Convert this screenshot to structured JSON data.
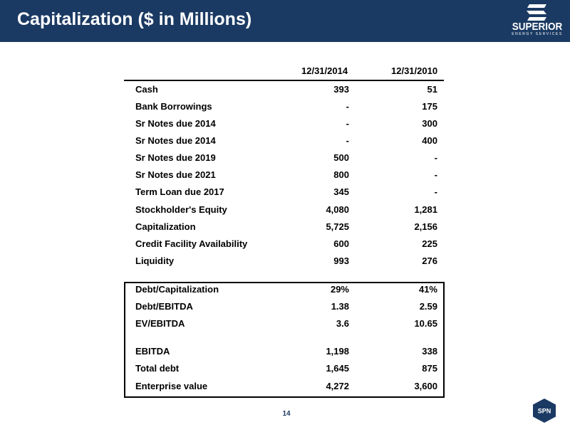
{
  "header": {
    "title": "Capitalization ($ in Millions)",
    "logo": {
      "name": "SUPERIOR",
      "tagline": "ENERGY SERVICES"
    },
    "background_color": "#1b3a63"
  },
  "table": {
    "columns": [
      "12/31/2014",
      "12/31/2010"
    ],
    "rows": [
      {
        "label": "Cash",
        "v2014": "393",
        "v2010": "51"
      },
      {
        "label": "Bank Borrowings",
        "v2014": "-",
        "v2010": "175"
      },
      {
        "label": "Sr Notes due 2014",
        "v2014": "-",
        "v2010": "300"
      },
      {
        "label": "Sr Notes due 2014",
        "v2014": "-",
        "v2010": "400"
      },
      {
        "label": "Sr Notes due 2019",
        "v2014": "500",
        "v2010": "-"
      },
      {
        "label": "Sr Notes due 2021",
        "v2014": "800",
        "v2010": "-"
      },
      {
        "label": "Term Loan due 2017",
        "v2014": "345",
        "v2010": "-"
      },
      {
        "label": "Stockholder's Equity",
        "v2014": "4,080",
        "v2010": "1,281"
      },
      {
        "label": "Capitalization",
        "v2014": "5,725",
        "v2010": "2,156"
      },
      {
        "label": "Credit Facility Availability",
        "v2014": "600",
        "v2010": "225"
      },
      {
        "label": "Liquidity",
        "v2014": "993",
        "v2010": "276"
      }
    ],
    "ratios": [
      {
        "label": "Debt/Capitalization",
        "v2014": "29%",
        "v2010": "41%"
      },
      {
        "label": "Debt/EBITDA",
        "v2014": "1.38",
        "v2010": "2.59"
      },
      {
        "label": "EV/EBITDA",
        "v2014": "3.6",
        "v2010": "10.65"
      }
    ],
    "totals": [
      {
        "label": "EBITDA",
        "v2014": "1,198",
        "v2010": "338"
      },
      {
        "label": "Total debt",
        "v2014": "1,645",
        "v2010": "875"
      },
      {
        "label": "Enterprise value",
        "v2014": "4,272",
        "v2010": "3,600"
      }
    ]
  },
  "footer": {
    "page_number": "14",
    "badge": "SPN",
    "accent_color": "#1b3a63"
  }
}
